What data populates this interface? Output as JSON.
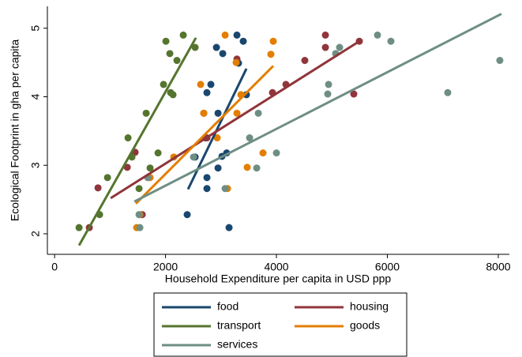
{
  "chart_data": {
    "type": "scatter",
    "xlabel": "Household Expenditure per capita in USD ppp",
    "ylabel": "Ecological Footprint in gha per capita",
    "xlim": [
      -130,
      8200
    ],
    "ylim": [
      1.7,
      5.32
    ],
    "xticks": [
      0,
      2000,
      4000,
      6000,
      8000
    ],
    "yticks": [
      2,
      3,
      4,
      5
    ],
    "series": [
      {
        "name": "food",
        "color": "#1a476f",
        "x": [
          2391,
          2534,
          2747,
          2747,
          2747,
          2818,
          2947,
          2918,
          3032,
          2947,
          3018,
          3103,
          3288,
          3317,
          3402,
          3459,
          3146,
          2719
        ],
        "values": [
          2.28,
          3.12,
          2.82,
          2.66,
          4.06,
          4.18,
          3.76,
          4.72,
          4.63,
          2.96,
          3.13,
          3.18,
          4.9,
          4.49,
          4.81,
          4.03,
          2.09,
          3.4
        ],
        "fit": {
          "x": [
            2406,
            3459
          ],
          "values": [
            2.65,
            4.41
          ]
        }
      },
      {
        "name": "housing",
        "color": "#90353b",
        "x": [
          626,
          783,
          1310,
          1452,
          1580,
          2690,
          2747,
          3288,
          3929,
          4171,
          4512,
          4883,
          4883,
          5395,
          5495
        ],
        "values": [
          2.09,
          2.67,
          2.97,
          3.19,
          2.28,
          3.76,
          3.4,
          4.55,
          4.06,
          4.18,
          4.53,
          4.9,
          4.72,
          4.04,
          4.81
        ],
        "fit": {
          "x": [
            1011,
            5495
          ],
          "values": [
            2.52,
            4.81
          ]
        }
      },
      {
        "name": "transport",
        "color": "#55752f",
        "x": [
          441,
          811,
          954,
          1324,
          1395,
          1523,
          1651,
          1722,
          1865,
          1964,
          2007,
          2078,
          2092,
          2135,
          2206,
          2320,
          2534
        ],
        "values": [
          2.09,
          2.28,
          2.82,
          3.4,
          3.12,
          2.66,
          3.76,
          2.96,
          3.18,
          4.18,
          4.81,
          4.63,
          4.06,
          4.03,
          4.53,
          4.9,
          4.72
        ],
        "fit": {
          "x": [
            441,
            2548
          ],
          "values": [
            1.83,
            4.86
          ]
        }
      },
      {
        "name": "goods",
        "color": "#e37e00",
        "x": [
          1480,
          1537,
          1722,
          2149,
          2633,
          2690,
          3075,
          3117,
          3274,
          3359,
          3288,
          3473,
          3758,
          3900,
          3943,
          2932
        ],
        "values": [
          2.09,
          2.28,
          2.82,
          3.12,
          4.18,
          3.76,
          4.9,
          2.66,
          4.5,
          4.03,
          3.76,
          2.97,
          3.18,
          4.62,
          4.81,
          3.4
        ],
        "fit": {
          "x": [
            1466,
            3943
          ],
          "values": [
            2.44,
            4.45
          ]
        }
      },
      {
        "name": "services",
        "color": "#6e8e84",
        "x": [
          1523,
          1537,
          1680,
          2505,
          3075,
          3516,
          3644,
          3673,
          4000,
          4925,
          4940,
          5068,
          5139,
          5822,
          6064,
          7089,
          8028
        ],
        "values": [
          2.28,
          2.09,
          2.82,
          3.12,
          2.66,
          3.4,
          2.96,
          3.76,
          3.18,
          4.04,
          4.18,
          4.63,
          4.72,
          4.9,
          4.81,
          4.06,
          4.53
        ],
        "fit": {
          "x": [
            1438,
            8057
          ],
          "values": [
            2.47,
            5.21
          ]
        }
      }
    ]
  }
}
